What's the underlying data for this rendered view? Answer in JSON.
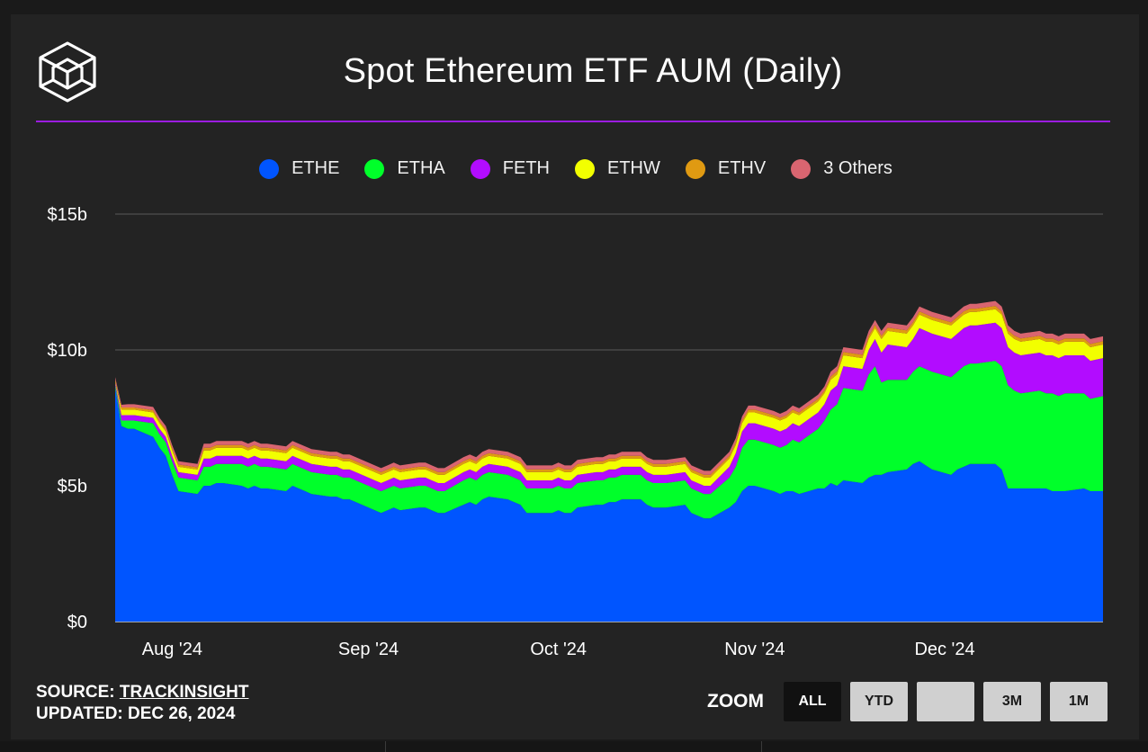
{
  "header": {
    "title": "Spot Ethereum ETF AUM (Daily)"
  },
  "legend": [
    {
      "label": "ETHE",
      "color": "#0055ff"
    },
    {
      "label": "ETHA",
      "color": "#00ff2a"
    },
    {
      "label": "FETH",
      "color": "#b20cff"
    },
    {
      "label": "ETHW",
      "color": "#f2ff00"
    },
    {
      "label": "ETHV",
      "color": "#e09a12"
    },
    {
      "label": "3 Others",
      "color": "#d96570"
    }
  ],
  "footer": {
    "source_prefix": "SOURCE: ",
    "source_link": "TRACKINSIGHT",
    "updated": "UPDATED: DEC 26, 2024"
  },
  "zoom": {
    "label": "ZOOM",
    "buttons": [
      {
        "label": "ALL",
        "active": true
      },
      {
        "label": "YTD",
        "active": false
      },
      {
        "label": "",
        "active": false
      },
      {
        "label": "3M",
        "active": false
      },
      {
        "label": "1M",
        "active": false
      }
    ]
  },
  "chart_data": {
    "type": "area",
    "stacked": true,
    "title": "Spot Ethereum ETF AUM (Daily)",
    "ylim": [
      0,
      15
    ],
    "y_unit": "billions USD",
    "y_ticks": [
      "$0",
      "$5b",
      "$10b",
      "$15b"
    ],
    "x_ticks": [
      "Aug '24",
      "Sep '24",
      "Oct '24",
      "Nov '24",
      "Dec '24"
    ],
    "x_tick_dates": [
      "2024-08-01",
      "2024-09-01",
      "2024-10-01",
      "2024-11-01",
      "2024-12-01"
    ],
    "grid": true,
    "legend_position": "top",
    "x": [
      "2024-07-23",
      "2024-07-24",
      "2024-07-25",
      "2024-07-26",
      "2024-07-29",
      "2024-07-30",
      "2024-07-31",
      "2024-08-01",
      "2024-08-02",
      "2024-08-05",
      "2024-08-06",
      "2024-08-07",
      "2024-08-08",
      "2024-08-09",
      "2024-08-12",
      "2024-08-13",
      "2024-08-14",
      "2024-08-15",
      "2024-08-16",
      "2024-08-19",
      "2024-08-20",
      "2024-08-21",
      "2024-08-22",
      "2024-08-23",
      "2024-08-26",
      "2024-08-27",
      "2024-08-28",
      "2024-08-29",
      "2024-08-30",
      "2024-09-03",
      "2024-09-04",
      "2024-09-05",
      "2024-09-06",
      "2024-09-09",
      "2024-09-10",
      "2024-09-11",
      "2024-09-12",
      "2024-09-13",
      "2024-09-16",
      "2024-09-17",
      "2024-09-18",
      "2024-09-19",
      "2024-09-20",
      "2024-09-23",
      "2024-09-24",
      "2024-09-25",
      "2024-09-26",
      "2024-09-27",
      "2024-09-30",
      "2024-10-01",
      "2024-10-02",
      "2024-10-03",
      "2024-10-04",
      "2024-10-07",
      "2024-10-08",
      "2024-10-09",
      "2024-10-10",
      "2024-10-11",
      "2024-10-14",
      "2024-10-15",
      "2024-10-16",
      "2024-10-17",
      "2024-10-18",
      "2024-10-21",
      "2024-10-22",
      "2024-10-23",
      "2024-10-24",
      "2024-10-25",
      "2024-10-28",
      "2024-10-29",
      "2024-10-30",
      "2024-10-31",
      "2024-11-01",
      "2024-11-04",
      "2024-11-05",
      "2024-11-06",
      "2024-11-07",
      "2024-11-08",
      "2024-11-11",
      "2024-11-12",
      "2024-11-13",
      "2024-11-14",
      "2024-11-15",
      "2024-11-18",
      "2024-11-19",
      "2024-11-20",
      "2024-11-21",
      "2024-11-22",
      "2024-11-25",
      "2024-11-26",
      "2024-11-27",
      "2024-11-29",
      "2024-12-02",
      "2024-12-03",
      "2024-12-04",
      "2024-12-05",
      "2024-12-06",
      "2024-12-09",
      "2024-12-10",
      "2024-12-11",
      "2024-12-12",
      "2024-12-13",
      "2024-12-16",
      "2024-12-17",
      "2024-12-18",
      "2024-12-19",
      "2024-12-20",
      "2024-12-23",
      "2024-12-24",
      "2024-12-26"
    ],
    "series": [
      {
        "name": "ETHE",
        "color": "#0055ff",
        "values": [
          8.6,
          7.2,
          7.1,
          7.1,
          6.8,
          6.4,
          6.1,
          5.4,
          4.8,
          4.7,
          5.0,
          5.0,
          5.1,
          5.1,
          5.0,
          4.9,
          5.0,
          4.9,
          4.9,
          4.8,
          5.0,
          4.9,
          4.8,
          4.7,
          4.6,
          4.6,
          4.5,
          4.5,
          4.4,
          4.0,
          4.1,
          4.2,
          4.1,
          4.2,
          4.2,
          4.1,
          4.0,
          4.0,
          4.3,
          4.4,
          4.3,
          4.5,
          4.6,
          4.5,
          4.4,
          4.3,
          4.0,
          4.0,
          4.0,
          4.1,
          4.0,
          4.0,
          4.2,
          4.3,
          4.3,
          4.4,
          4.4,
          4.5,
          4.5,
          4.3,
          4.2,
          4.2,
          4.2,
          4.3,
          4.0,
          3.9,
          3.8,
          3.8,
          4.2,
          4.4,
          4.8,
          5.0,
          5.0,
          4.8,
          4.7,
          4.8,
          4.8,
          4.7,
          4.9,
          4.9,
          5.1,
          5.0,
          5.2,
          5.1,
          5.3,
          5.4,
          5.4,
          5.5,
          5.6,
          5.8,
          5.9,
          5.6,
          5.4,
          5.6,
          5.7,
          5.8,
          5.8,
          5.8,
          5.6,
          4.9,
          4.9,
          4.9,
          4.9,
          4.9,
          4.8,
          4.8,
          4.8,
          4.9,
          4.8,
          4.8
        ]
      },
      {
        "name": "ETHA",
        "color": "#00ff2a",
        "values": [
          0.1,
          0.2,
          0.3,
          0.3,
          0.5,
          0.5,
          0.5,
          0.5,
          0.5,
          0.5,
          0.7,
          0.7,
          0.7,
          0.7,
          0.8,
          0.8,
          0.8,
          0.8,
          0.8,
          0.8,
          0.8,
          0.8,
          0.8,
          0.8,
          0.8,
          0.8,
          0.8,
          0.8,
          0.8,
          0.8,
          0.8,
          0.8,
          0.8,
          0.8,
          0.8,
          0.8,
          0.8,
          0.8,
          0.9,
          0.9,
          0.9,
          0.9,
          0.9,
          0.9,
          0.9,
          0.9,
          0.9,
          0.9,
          0.9,
          0.9,
          0.9,
          0.9,
          0.9,
          0.9,
          0.9,
          0.9,
          0.9,
          0.9,
          0.9,
          0.9,
          0.9,
          0.9,
          0.9,
          0.9,
          0.9,
          0.9,
          0.9,
          0.9,
          1.1,
          1.3,
          1.6,
          1.7,
          1.7,
          1.7,
          1.7,
          1.7,
          1.9,
          1.9,
          2.2,
          2.5,
          2.7,
          3.0,
          3.4,
          3.4,
          3.8,
          4.0,
          3.4,
          3.4,
          3.3,
          3.4,
          3.5,
          3.6,
          3.6,
          3.6,
          3.7,
          3.7,
          3.7,
          3.8,
          3.8,
          3.8,
          3.6,
          3.5,
          3.6,
          3.5,
          3.6,
          3.5,
          3.6,
          3.5,
          3.4,
          3.5
        ]
      },
      {
        "name": "FETH",
        "color": "#b20cff",
        "values": [
          0.1,
          0.2,
          0.2,
          0.2,
          0.2,
          0.2,
          0.2,
          0.2,
          0.2,
          0.2,
          0.3,
          0.3,
          0.3,
          0.3,
          0.3,
          0.3,
          0.3,
          0.3,
          0.3,
          0.3,
          0.3,
          0.3,
          0.3,
          0.3,
          0.3,
          0.3,
          0.3,
          0.3,
          0.3,
          0.3,
          0.3,
          0.3,
          0.3,
          0.3,
          0.3,
          0.3,
          0.3,
          0.3,
          0.3,
          0.3,
          0.3,
          0.3,
          0.3,
          0.3,
          0.3,
          0.3,
          0.3,
          0.3,
          0.3,
          0.3,
          0.3,
          0.3,
          0.3,
          0.3,
          0.3,
          0.3,
          0.3,
          0.3,
          0.3,
          0.3,
          0.3,
          0.3,
          0.3,
          0.3,
          0.3,
          0.3,
          0.3,
          0.3,
          0.4,
          0.5,
          0.6,
          0.6,
          0.6,
          0.6,
          0.6,
          0.6,
          0.6,
          0.6,
          0.6,
          0.6,
          0.7,
          0.7,
          0.8,
          0.8,
          0.9,
          1.0,
          1.1,
          1.3,
          1.2,
          1.2,
          1.4,
          1.4,
          1.4,
          1.4,
          1.4,
          1.4,
          1.4,
          1.4,
          1.4,
          1.4,
          1.4,
          1.4,
          1.4,
          1.4,
          1.4,
          1.4,
          1.4,
          1.4,
          1.4,
          1.4
        ]
      },
      {
        "name": "ETHW",
        "color": "#f2ff00",
        "values": [
          0.05,
          0.2,
          0.2,
          0.2,
          0.2,
          0.2,
          0.2,
          0.2,
          0.2,
          0.2,
          0.3,
          0.3,
          0.3,
          0.3,
          0.3,
          0.3,
          0.3,
          0.3,
          0.3,
          0.3,
          0.3,
          0.3,
          0.3,
          0.3,
          0.3,
          0.3,
          0.3,
          0.3,
          0.3,
          0.3,
          0.3,
          0.3,
          0.3,
          0.3,
          0.3,
          0.3,
          0.3,
          0.3,
          0.3,
          0.3,
          0.3,
          0.3,
          0.3,
          0.3,
          0.3,
          0.3,
          0.3,
          0.3,
          0.3,
          0.3,
          0.3,
          0.3,
          0.3,
          0.3,
          0.3,
          0.3,
          0.3,
          0.3,
          0.3,
          0.3,
          0.3,
          0.3,
          0.3,
          0.3,
          0.3,
          0.3,
          0.3,
          0.3,
          0.3,
          0.3,
          0.3,
          0.4,
          0.4,
          0.4,
          0.4,
          0.4,
          0.4,
          0.4,
          0.4,
          0.4,
          0.4,
          0.4,
          0.4,
          0.4,
          0.4,
          0.4,
          0.5,
          0.5,
          0.5,
          0.5,
          0.5,
          0.5,
          0.5,
          0.5,
          0.5,
          0.5,
          0.5,
          0.5,
          0.5,
          0.5,
          0.5,
          0.5,
          0.5,
          0.5,
          0.5,
          0.5,
          0.5,
          0.5,
          0.5,
          0.5
        ]
      },
      {
        "name": "ETHV",
        "color": "#e09a12",
        "values": [
          0.05,
          0.08,
          0.08,
          0.08,
          0.08,
          0.08,
          0.08,
          0.08,
          0.08,
          0.08,
          0.1,
          0.1,
          0.1,
          0.1,
          0.1,
          0.1,
          0.1,
          0.1,
          0.1,
          0.1,
          0.1,
          0.1,
          0.1,
          0.1,
          0.1,
          0.1,
          0.1,
          0.1,
          0.1,
          0.1,
          0.1,
          0.1,
          0.1,
          0.1,
          0.1,
          0.1,
          0.1,
          0.1,
          0.1,
          0.1,
          0.1,
          0.1,
          0.1,
          0.1,
          0.1,
          0.1,
          0.1,
          0.1,
          0.1,
          0.1,
          0.1,
          0.1,
          0.1,
          0.1,
          0.1,
          0.1,
          0.1,
          0.1,
          0.1,
          0.1,
          0.1,
          0.1,
          0.1,
          0.1,
          0.1,
          0.1,
          0.1,
          0.1,
          0.1,
          0.1,
          0.1,
          0.1,
          0.1,
          0.1,
          0.1,
          0.1,
          0.1,
          0.1,
          0.1,
          0.1,
          0.12,
          0.12,
          0.12,
          0.12,
          0.12,
          0.12,
          0.12,
          0.12,
          0.12,
          0.12,
          0.12,
          0.12,
          0.12,
          0.12,
          0.12,
          0.12,
          0.12,
          0.12,
          0.12,
          0.12,
          0.12,
          0.12,
          0.12,
          0.12,
          0.12,
          0.12,
          0.12,
          0.12,
          0.12,
          0.12
        ]
      },
      {
        "name": "3 Others",
        "color": "#d96570",
        "values": [
          0.1,
          0.1,
          0.12,
          0.12,
          0.12,
          0.12,
          0.12,
          0.12,
          0.12,
          0.12,
          0.15,
          0.15,
          0.15,
          0.15,
          0.15,
          0.15,
          0.15,
          0.15,
          0.15,
          0.15,
          0.15,
          0.15,
          0.15,
          0.15,
          0.15,
          0.15,
          0.15,
          0.15,
          0.15,
          0.15,
          0.15,
          0.15,
          0.15,
          0.15,
          0.15,
          0.15,
          0.15,
          0.15,
          0.15,
          0.15,
          0.15,
          0.15,
          0.15,
          0.15,
          0.15,
          0.15,
          0.15,
          0.15,
          0.15,
          0.15,
          0.15,
          0.15,
          0.15,
          0.15,
          0.15,
          0.15,
          0.15,
          0.15,
          0.15,
          0.15,
          0.15,
          0.15,
          0.15,
          0.15,
          0.15,
          0.15,
          0.15,
          0.15,
          0.15,
          0.15,
          0.15,
          0.15,
          0.15,
          0.15,
          0.15,
          0.15,
          0.15,
          0.15,
          0.15,
          0.15,
          0.18,
          0.18,
          0.18,
          0.18,
          0.18,
          0.18,
          0.18,
          0.18,
          0.18,
          0.18,
          0.18,
          0.18,
          0.18,
          0.18,
          0.18,
          0.18,
          0.18,
          0.18,
          0.18,
          0.18,
          0.18,
          0.18,
          0.18,
          0.18,
          0.18,
          0.18,
          0.18,
          0.18,
          0.18,
          0.18
        ]
      }
    ]
  }
}
